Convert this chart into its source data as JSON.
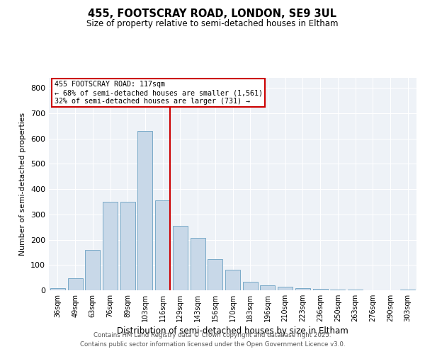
{
  "title_line1": "455, FOOTSCRAY ROAD, LONDON, SE9 3UL",
  "title_line2": "Size of property relative to semi-detached houses in Eltham",
  "xlabel": "Distribution of semi-detached houses by size in Eltham",
  "ylabel": "Number of semi-detached properties",
  "categories": [
    "36sqm",
    "49sqm",
    "63sqm",
    "76sqm",
    "89sqm",
    "103sqm",
    "116sqm",
    "129sqm",
    "143sqm",
    "156sqm",
    "170sqm",
    "183sqm",
    "196sqm",
    "210sqm",
    "223sqm",
    "236sqm",
    "250sqm",
    "263sqm",
    "276sqm",
    "290sqm",
    "303sqm"
  ],
  "values": [
    8,
    48,
    160,
    350,
    350,
    630,
    355,
    255,
    208,
    122,
    80,
    35,
    20,
    15,
    9,
    5,
    4,
    2,
    1,
    0,
    3
  ],
  "bar_color": "#c8d8e8",
  "bar_edge_color": "#7aaac8",
  "vline_color": "#cc0000",
  "vline_pos": 6.425,
  "annotation_title": "455 FOOTSCRAY ROAD: 117sqm",
  "annotation_line2": "← 68% of semi-detached houses are smaller (1,561)",
  "annotation_line3": "32% of semi-detached houses are larger (731) →",
  "annotation_box_color": "#cc0000",
  "ylim": [
    0,
    840
  ],
  "yticks": [
    0,
    100,
    200,
    300,
    400,
    500,
    600,
    700,
    800
  ],
  "footer_line1": "Contains HM Land Registry data © Crown copyright and database right 2025.",
  "footer_line2": "Contains public sector information licensed under the Open Government Licence v3.0.",
  "bg_color": "#eef2f7"
}
